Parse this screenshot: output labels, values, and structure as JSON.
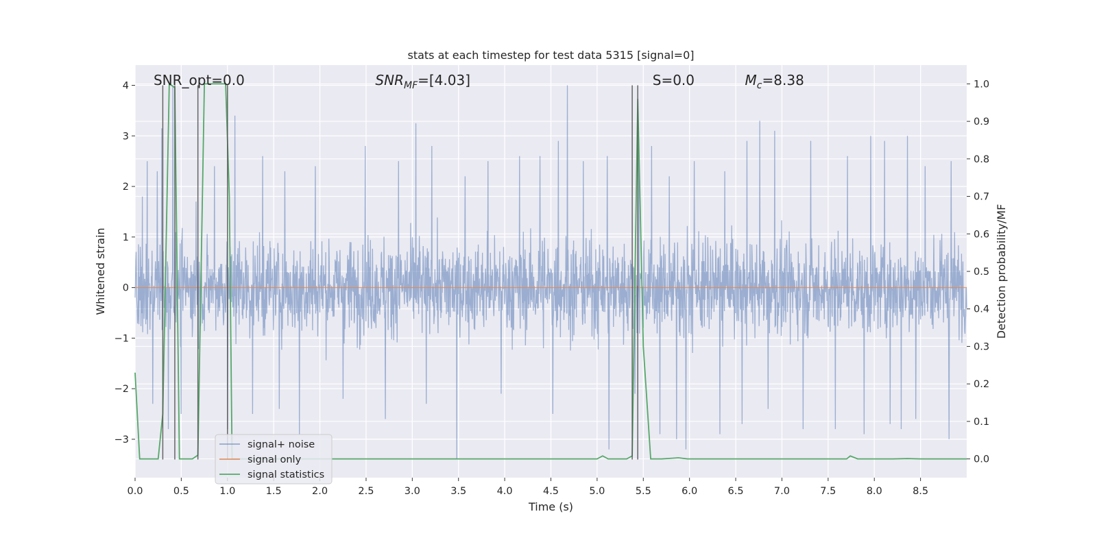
{
  "chart_data": {
    "type": "line",
    "title": "stats at each timestep for test data 5315 [signal=0]",
    "xlabel": "Time (s)",
    "ylabel": "Whitened strain",
    "ylabel_right": "Detection probability/MF",
    "xlim": [
      0.0,
      9.0
    ],
    "ylim": [
      -3.76,
      4.4
    ],
    "ylim_right": [
      -0.05,
      1.05
    ],
    "grid": true,
    "background_color": "#eaeaf2",
    "grid_color": "#ffffff",
    "x_ticks": [
      0.0,
      0.5,
      1.0,
      1.5,
      2.0,
      2.5,
      3.0,
      3.5,
      4.0,
      4.5,
      5.0,
      5.5,
      6.0,
      6.5,
      7.0,
      7.5,
      8.0,
      8.5
    ],
    "x_tick_labels": [
      "0.0",
      "0.5",
      "1.0",
      "1.5",
      "2.0",
      "2.5",
      "3.0",
      "3.5",
      "4.0",
      "4.5",
      "5.0",
      "5.5",
      "6.0",
      "6.5",
      "7.0",
      "7.5",
      "8.0",
      "8.5"
    ],
    "y_ticks": [
      -3,
      -2,
      -1,
      0,
      1,
      2,
      3,
      4
    ],
    "y_tick_labels": [
      "−3",
      "−2",
      "−1",
      "0",
      "1",
      "2",
      "3",
      "4"
    ],
    "y_right_ticks": [
      0.0,
      0.1,
      0.2,
      0.3,
      0.4,
      0.5,
      0.6,
      0.7,
      0.8,
      0.9,
      1.0
    ],
    "y_right_tick_labels": [
      "0.0",
      "0.1",
      "0.2",
      "0.3",
      "0.4",
      "0.5",
      "0.6",
      "0.7",
      "0.8",
      "0.9",
      "1.0"
    ],
    "annotations": [
      {
        "id": "snr-opt",
        "text": "SNR_opt=0.0",
        "x": 0.2,
        "y": 4.1
      },
      {
        "id": "snr-mf",
        "text": "SNR",
        "sub": "MF",
        "rest": "=[4.03]",
        "x": 2.6,
        "y": 4.1
      },
      {
        "id": "s-val",
        "text": "S=0.0",
        "x": 5.6,
        "y": 4.1
      },
      {
        "id": "mc-val",
        "text": "M",
        "sub": "c",
        "rest": "=8.38",
        "x": 6.6,
        "y": 4.1
      }
    ],
    "vertical_lines": [
      0.3,
      0.43,
      0.68,
      1.0,
      5.38,
      5.44
    ],
    "vertical_line_range": [
      -3.4,
      4.0
    ],
    "noise": {
      "name": "signal+ noise",
      "color": "#4c72b0",
      "duration_s": 9.0,
      "typical_amplitude": 1.0,
      "upper_spikes": [
        {
          "t": 0.08,
          "y": 1.8
        },
        {
          "t": 0.13,
          "y": 2.5
        },
        {
          "t": 0.24,
          "y": 2.3
        },
        {
          "t": 0.29,
          "y": 3.15
        },
        {
          "t": 0.41,
          "y": 4.0
        },
        {
          "t": 0.66,
          "y": 1.7
        },
        {
          "t": 0.86,
          "y": 2.4
        },
        {
          "t": 1.08,
          "y": 3.4
        },
        {
          "t": 1.38,
          "y": 2.6
        },
        {
          "t": 1.62,
          "y": 2.3
        },
        {
          "t": 1.95,
          "y": 2.4
        },
        {
          "t": 2.49,
          "y": 2.8
        },
        {
          "t": 2.85,
          "y": 2.5
        },
        {
          "t": 3.04,
          "y": 3.25
        },
        {
          "t": 3.21,
          "y": 2.8
        },
        {
          "t": 3.57,
          "y": 2.2
        },
        {
          "t": 3.82,
          "y": 2.5
        },
        {
          "t": 4.16,
          "y": 2.6
        },
        {
          "t": 4.38,
          "y": 2.6
        },
        {
          "t": 4.58,
          "y": 2.9
        },
        {
          "t": 4.68,
          "y": 4.0
        },
        {
          "t": 4.85,
          "y": 2.5
        },
        {
          "t": 5.11,
          "y": 2.6
        },
        {
          "t": 5.45,
          "y": 2.95
        },
        {
          "t": 5.59,
          "y": 2.8
        },
        {
          "t": 5.78,
          "y": 2.2
        },
        {
          "t": 6.05,
          "y": 2.5
        },
        {
          "t": 6.38,
          "y": 2.3
        },
        {
          "t": 6.62,
          "y": 2.9
        },
        {
          "t": 6.76,
          "y": 3.3
        },
        {
          "t": 6.92,
          "y": 3.1
        },
        {
          "t": 7.31,
          "y": 2.9
        },
        {
          "t": 7.71,
          "y": 2.6
        },
        {
          "t": 7.96,
          "y": 3.0
        },
        {
          "t": 8.11,
          "y": 2.9
        },
        {
          "t": 8.36,
          "y": 3.0
        },
        {
          "t": 8.55,
          "y": 2.4
        },
        {
          "t": 8.83,
          "y": 2.5
        }
      ],
      "lower_spikes": [
        {
          "t": 0.19,
          "y": -2.3
        },
        {
          "t": 0.36,
          "y": -2.8
        },
        {
          "t": 0.5,
          "y": -2.5
        },
        {
          "t": 1.0,
          "y": -2.8
        },
        {
          "t": 1.27,
          "y": -2.5
        },
        {
          "t": 1.56,
          "y": -2.4
        },
        {
          "t": 1.78,
          "y": -2.9
        },
        {
          "t": 2.25,
          "y": -2.2
        },
        {
          "t": 2.71,
          "y": -2.6
        },
        {
          "t": 3.15,
          "y": -2.3
        },
        {
          "t": 3.48,
          "y": -3.4
        },
        {
          "t": 3.96,
          "y": -2.1
        },
        {
          "t": 4.52,
          "y": -2.5
        },
        {
          "t": 5.13,
          "y": -3.2
        },
        {
          "t": 5.41,
          "y": -2.1
        },
        {
          "t": 5.68,
          "y": -2.9
        },
        {
          "t": 5.86,
          "y": -3.0
        },
        {
          "t": 5.96,
          "y": -3.2
        },
        {
          "t": 6.33,
          "y": -2.9
        },
        {
          "t": 6.57,
          "y": -2.7
        },
        {
          "t": 6.85,
          "y": -2.4
        },
        {
          "t": 7.23,
          "y": -2.8
        },
        {
          "t": 7.58,
          "y": -2.8
        },
        {
          "t": 7.89,
          "y": -2.9
        },
        {
          "t": 8.17,
          "y": -2.7
        },
        {
          "t": 8.29,
          "y": -2.8
        },
        {
          "t": 8.45,
          "y": -2.6
        },
        {
          "t": 8.81,
          "y": -3.0
        }
      ]
    },
    "signal_only": {
      "name": "signal only",
      "color": "#dd8452",
      "value": 0.0
    },
    "statistics": {
      "name": "signal statistics",
      "color": "#55a868",
      "t": [
        0.0,
        0.05,
        0.25,
        0.3,
        0.37,
        0.43,
        0.48,
        0.62,
        0.68,
        0.75,
        0.98,
        1.02,
        1.05,
        1.1,
        5.0,
        5.06,
        5.12,
        5.32,
        5.38,
        5.44,
        5.5,
        5.58,
        5.7,
        5.88,
        5.98,
        7.6,
        7.7,
        7.74,
        7.82,
        8.2,
        8.36,
        8.5,
        9.0
      ],
      "p": [
        0.23,
        0.0,
        0.0,
        0.12,
        1.0,
        0.99,
        0.0,
        0.0,
        0.01,
        1.0,
        1.0,
        0.7,
        0.0,
        0.0,
        0.0,
        0.008,
        0.0,
        0.0,
        0.008,
        0.96,
        0.3,
        0.0,
        0.0,
        0.003,
        0.0,
        0.0,
        0.0,
        0.008,
        0.0,
        0.0,
        0.001,
        0.0,
        0.0
      ]
    },
    "legend": {
      "position": "lower-left",
      "entries": [
        "signal+ noise",
        "signal only",
        "signal statistics"
      ]
    }
  }
}
